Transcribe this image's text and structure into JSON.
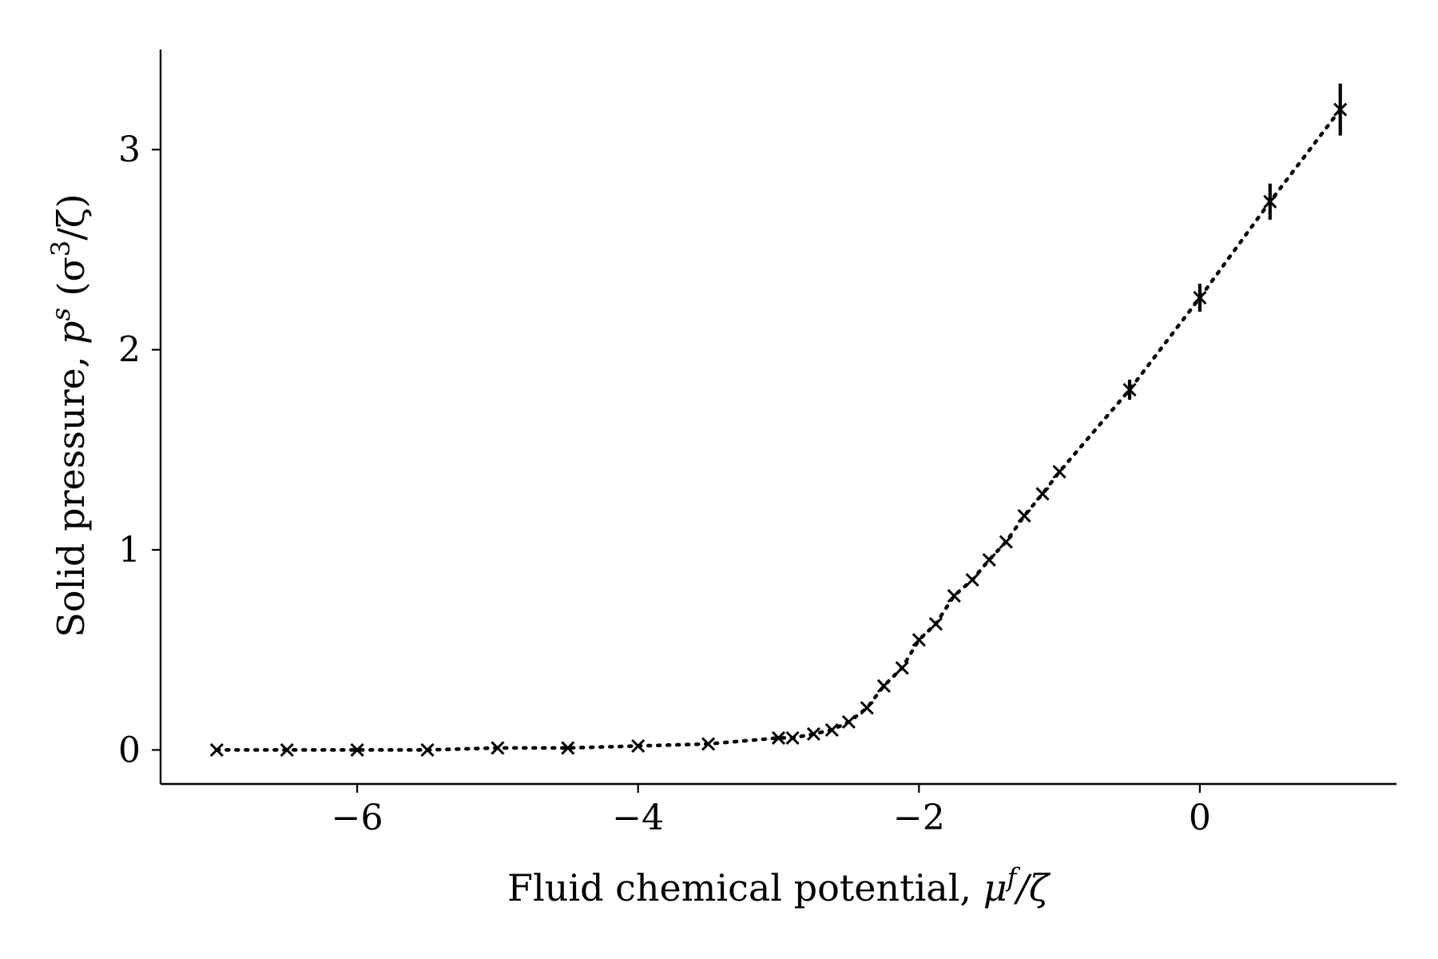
{
  "chart_data": {
    "type": "scatter",
    "xlabel_text": "Fluid chemical potential, ",
    "xlabel_math": "μ",
    "xlabel_sup": "f",
    "xlabel_tail": "/ζ",
    "ylabel_text": "Solid pressure, ",
    "ylabel_math": "p",
    "ylabel_sup": "s",
    "ylabel_unit_open": " (σ",
    "ylabel_unit_sup": "3",
    "ylabel_unit_close": "/ζ)",
    "xlim": [
      -7.4,
      1.4
    ],
    "ylim": [
      -0.17,
      3.5
    ],
    "xticks": [
      -6,
      -4,
      -2,
      0
    ],
    "xtick_labels": [
      "−6",
      "−4",
      "−2",
      "0"
    ],
    "yticks": [
      0,
      1,
      2,
      3
    ],
    "ytick_labels": [
      "0",
      "1",
      "2",
      "3"
    ],
    "grid": false,
    "series": [
      {
        "marker": "x",
        "line_style": "dotted",
        "color": "#000000",
        "x": [
          -7.0,
          -6.5,
          -6.0,
          -5.5,
          -5.0,
          -4.5,
          -4.0,
          -3.5,
          -3.0,
          -2.9,
          -2.75,
          -2.62,
          -2.5,
          -2.37,
          -2.25,
          -2.12,
          -2.0,
          -1.88,
          -1.75,
          -1.62,
          -1.5,
          -1.38,
          -1.25,
          -1.12,
          -1.0,
          -0.5,
          0.0,
          0.5,
          1.0
        ],
        "y": [
          0.0,
          0.0,
          0.0,
          0.0,
          0.01,
          0.01,
          0.02,
          0.03,
          0.06,
          0.06,
          0.08,
          0.1,
          0.14,
          0.21,
          0.32,
          0.41,
          0.55,
          0.63,
          0.77,
          0.85,
          0.95,
          1.04,
          1.17,
          1.28,
          1.39,
          1.8,
          2.26,
          2.74,
          3.2
        ],
        "yerr": [
          0,
          0,
          0,
          0,
          0,
          0,
          0,
          0,
          0,
          0,
          0,
          0,
          0,
          0,
          0,
          0,
          0,
          0,
          0,
          0,
          0,
          0,
          0,
          0,
          0,
          0.05,
          0.07,
          0.09,
          0.13
        ]
      }
    ]
  }
}
